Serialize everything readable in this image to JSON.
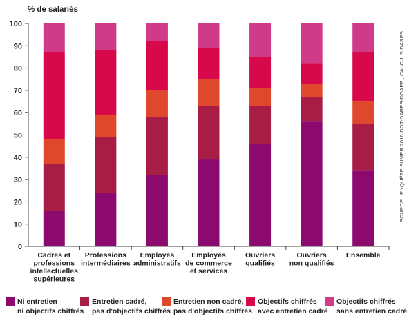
{
  "chart_data": {
    "type": "bar",
    "stacked": true,
    "ylabel": "% de salariés",
    "ylim": [
      0,
      100
    ],
    "yticks": [
      0,
      10,
      20,
      30,
      40,
      50,
      60,
      70,
      80,
      90,
      100
    ],
    "grid": false,
    "legend_position": "bottom",
    "source": "SOURCE : ENQUÊTE SUMER 2010 DGT-DARES-DGAFP ; CALCULS DARES.",
    "categories": [
      [
        "Cadres et",
        "professions",
        "intellectuelles",
        "supérieures"
      ],
      [
        "Professions",
        "intermédiaires"
      ],
      [
        "Employés",
        "administratifs"
      ],
      [
        "Employés",
        "de commerce",
        "et services"
      ],
      [
        "Ouvriers",
        "qualifiés"
      ],
      [
        "Ouvriers",
        "non qualifiés"
      ],
      [
        "Ensemble"
      ]
    ],
    "series": [
      {
        "name": [
          "Ni entretien",
          "ni objectifs chiffrés"
        ],
        "color": "#8c0a6e",
        "values": [
          16,
          24,
          32,
          39,
          46,
          56,
          34
        ]
      },
      {
        "name": [
          "Entretien cadré,",
          "pas d'objectifs chiffrés"
        ],
        "color": "#a81d46",
        "values": [
          21,
          25,
          26,
          24,
          17,
          11,
          21
        ]
      },
      {
        "name": [
          "Entretien non cadré,",
          "pas d'objectifs chiffrés"
        ],
        "color": "#e0482e",
        "values": [
          11,
          10,
          12,
          12,
          8,
          6,
          10
        ]
      },
      {
        "name": [
          "Objectifs chiffrés",
          "avec entretien cadré"
        ],
        "color": "#d8094a",
        "values": [
          39,
          29,
          22,
          14,
          14,
          9,
          22
        ]
      },
      {
        "name": [
          "Objectifs chiffrés",
          "sans entretien cadré"
        ],
        "color": "#cf3b88",
        "values": [
          13,
          12,
          8,
          11,
          15,
          18,
          13
        ]
      }
    ]
  }
}
